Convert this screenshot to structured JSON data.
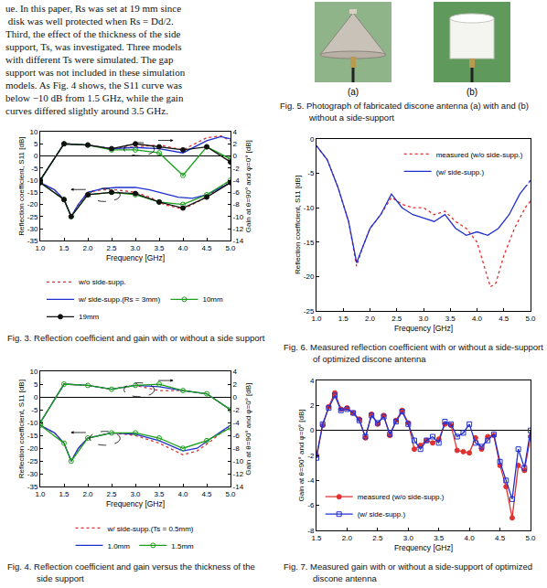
{
  "paragraph": [
    "ue. In this paper, Rs was set at 19 mm since",
    " disk was well protected when Rs = Dd/2.",
    "Third, the effect of the thickness of the side",
    "support, Ts, was investigated. Three models",
    "with different Ts were simulated. The gap",
    "support was not included in these simulation",
    "models. As Fig. 4 shows, the S11 curve was",
    "below −10 dB from 1.5 GHz, while the gain",
    "curves differed slightly around 3.5 GHz."
  ],
  "photo_figure": {
    "labels": [
      "(a)",
      "(b)"
    ],
    "caption": "Fig. 5. Photograph of fabricated discone antenna (a) with and (b) without a side-support"
  },
  "chart_data": [
    {
      "type": "line",
      "caption": "Fig. 3. Reflection coefficient and gain with or without a side support",
      "xlabel": "Frequency [GHz]",
      "ylabel": "Reflection coefficient, S11 [dB]",
      "y2label": "Gain at θ=90° and φ=0° [dB]",
      "xlim": [
        1,
        5
      ],
      "xticks": [
        {
          "value": 1,
          "label": "1.0"
        },
        1.5,
        {
          "value": 2,
          "label": "2.0"
        },
        2.5,
        {
          "value": 3,
          "label": "3.0"
        },
        3.5,
        {
          "value": 4,
          "label": "4.0"
        },
        4.5,
        {
          "value": 5,
          "label": "5.0"
        }
      ],
      "ylim": [
        -35,
        10
      ],
      "yticks": [
        -35,
        -30,
        -25,
        -20,
        -15,
        -10,
        -5,
        0,
        5,
        10
      ],
      "y2lim": [
        -14,
        4
      ],
      "y2ticks": [
        -14,
        -12,
        -10,
        -8,
        -6,
        -4,
        -2,
        0,
        2,
        4
      ],
      "grid": false,
      "legend": "bottom",
      "series": [
        {
          "name": "w/o side-supp.",
          "color": "#e03030",
          "line_style": "dot",
          "marker": "none",
          "axis": "y",
          "x": [
            1.0,
            1.3,
            1.5,
            1.65,
            1.8,
            2.0,
            2.3,
            2.6,
            3.0,
            3.3,
            3.6,
            3.9,
            4.1,
            4.4,
            4.7,
            5.0
          ],
          "values": [
            -11,
            -14,
            -18,
            -25,
            -20,
            -15,
            -14,
            -14,
            -15,
            -17,
            -20,
            -21.5,
            -21,
            -18,
            -14,
            -10
          ]
        },
        {
          "name": "w/ side-supp.(Rs = 3mm)",
          "color": "#2030d0",
          "line_style": "solid",
          "marker": "none",
          "axis": "y",
          "x": [
            1.0,
            1.3,
            1.5,
            1.65,
            1.8,
            2.0,
            2.3,
            2.6,
            3.0,
            3.3,
            3.6,
            3.9,
            4.2,
            4.5,
            4.8,
            5.0
          ],
          "values": [
            -11,
            -14,
            -18,
            -25,
            -20,
            -15,
            -13.5,
            -13,
            -13,
            -14,
            -15.5,
            -17,
            -17.5,
            -16,
            -13,
            -11
          ]
        },
        {
          "name": "10mm",
          "color": "#1aa01a",
          "line_style": "solid",
          "marker": "circle-open",
          "axis": "y",
          "x": [
            1.0,
            1.5,
            1.65,
            2.0,
            2.5,
            3.0,
            3.5,
            4.0,
            4.5,
            5.0
          ],
          "values": [
            -11,
            -18,
            -25,
            -16,
            -15,
            -16,
            -19,
            -20,
            -16,
            -10
          ]
        },
        {
          "name": "19mm",
          "color": "#111111",
          "line_style": "solid",
          "marker": "circle",
          "axis": "y",
          "x": [
            1.0,
            1.5,
            1.65,
            2.0,
            2.5,
            3.0,
            3.5,
            4.0,
            4.5,
            5.0
          ],
          "values": [
            -11,
            -18,
            -25,
            -16,
            -15,
            -15.5,
            -19,
            -21.5,
            -17,
            -11
          ]
        },
        {
          "name": "w/o side-supp.",
          "color": "#e03030",
          "line_style": "dot",
          "marker": "none",
          "axis": "y2",
          "x": [
            1.0,
            1.5,
            2.0,
            2.5,
            3.0,
            3.5,
            4.0,
            4.5,
            4.8,
            5.0
          ],
          "values": [
            -4,
            2,
            1.8,
            1.2,
            1.5,
            1.8,
            1.0,
            3.0,
            3.3,
            2.5
          ]
        },
        {
          "name": "w/ side-supp.(Rs = 3mm)",
          "color": "#2030d0",
          "line_style": "solid",
          "marker": "none",
          "axis": "y2",
          "x": [
            1.0,
            1.5,
            2.0,
            2.5,
            3.0,
            3.5,
            4.0,
            4.5,
            4.8,
            5.0
          ],
          "values": [
            -4,
            2,
            1.8,
            1.2,
            1.4,
            1.2,
            0.5,
            2.5,
            3.2,
            2.8
          ]
        },
        {
          "name": "10mm",
          "color": "#1aa01a",
          "line_style": "solid",
          "marker": "circle-open",
          "axis": "y2",
          "x": [
            1.0,
            1.5,
            2.0,
            2.5,
            3.0,
            3.5,
            4.0,
            4.5,
            5.0
          ],
          "values": [
            -4,
            2,
            1.8,
            1.0,
            1.0,
            0.5,
            -3.2,
            1.5,
            -0.5
          ]
        },
        {
          "name": "19mm",
          "color": "#111111",
          "line_style": "solid",
          "marker": "circle",
          "axis": "y2",
          "x": [
            1.0,
            1.5,
            2.0,
            2.5,
            3.0,
            3.5,
            4.0,
            4.5,
            5.0
          ],
          "values": [
            -4,
            2,
            1.8,
            1.2,
            2.0,
            1.5,
            1.0,
            1.5,
            -1.0
          ]
        }
      ]
    },
    {
      "type": "line",
      "caption": "Fig. 4. Reflection coefficient and gain versus the thickness of the side support",
      "xlabel": "Frequency [GHz]",
      "ylabel": "Reflection coefficient, S11 [dB]",
      "y2label": "Gain at θ=90° and φ=0° [dB]",
      "xlim": [
        1,
        5
      ],
      "xticks": [
        {
          "value": 1,
          "label": "1.0"
        },
        1.5,
        {
          "value": 2,
          "label": "2.0"
        },
        2.5,
        {
          "value": 3,
          "label": "3.0"
        },
        3.5,
        {
          "value": 4,
          "label": "4.0"
        },
        4.5,
        {
          "value": 5,
          "label": "5.0"
        }
      ],
      "ylim": [
        -35,
        10
      ],
      "yticks": [
        -35,
        -30,
        -25,
        -20,
        -15,
        -10,
        -5,
        0,
        5,
        10
      ],
      "y2lim": [
        -14,
        4
      ],
      "y2ticks": [
        -14,
        -12,
        -10,
        -8,
        -6,
        -4,
        -2,
        0,
        2,
        4
      ],
      "grid": false,
      "legend": "bottom",
      "series": [
        {
          "name": "w/ side-supp.(Ts = 0.5mm)",
          "color": "#e03030",
          "line_style": "dot",
          "marker": "none",
          "axis": "y",
          "x": [
            1.0,
            1.3,
            1.5,
            1.65,
            1.8,
            2.0,
            2.5,
            3.0,
            3.5,
            4.0,
            4.3,
            4.6,
            5.0
          ],
          "values": [
            -11,
            -14,
            -18,
            -25,
            -20,
            -16,
            -14,
            -15,
            -18,
            -22.5,
            -21,
            -17,
            -11
          ]
        },
        {
          "name": "1.0mm",
          "color": "#2030d0",
          "line_style": "solid",
          "marker": "none",
          "axis": "y",
          "x": [
            1.0,
            1.3,
            1.5,
            1.65,
            1.8,
            2.0,
            2.5,
            3.0,
            3.5,
            4.0,
            4.3,
            4.6,
            5.0
          ],
          "values": [
            -11,
            -14,
            -18,
            -25,
            -20,
            -16,
            -14,
            -14.5,
            -17,
            -21,
            -20,
            -16,
            -11
          ]
        },
        {
          "name": "1.5mm",
          "color": "#1aa01a",
          "line_style": "solid",
          "marker": "circle-open",
          "axis": "y",
          "x": [
            1.0,
            1.5,
            1.65,
            2.0,
            2.5,
            3.0,
            3.5,
            4.0,
            4.5,
            5.0
          ],
          "values": [
            -11,
            -18,
            -25,
            -16,
            -14,
            -14,
            -16,
            -20,
            -17,
            -12
          ]
        },
        {
          "name": "w/ side-supp.(Ts = 0.5mm)",
          "color": "#e03030",
          "line_style": "dot",
          "marker": "none",
          "axis": "y2",
          "x": [
            1.0,
            1.5,
            2.0,
            2.5,
            3.0,
            3.5,
            4.0,
            4.5,
            5.0
          ],
          "values": [
            -4,
            2,
            1.8,
            1.2,
            1.8,
            1.0,
            1.0,
            0.5,
            -2
          ]
        },
        {
          "name": "1.0mm",
          "color": "#2030d0",
          "line_style": "solid",
          "marker": "none",
          "axis": "y2",
          "x": [
            1.0,
            1.5,
            2.0,
            2.5,
            3.0,
            3.5,
            4.0,
            4.5,
            5.0
          ],
          "values": [
            -4,
            2,
            1.8,
            1.2,
            1.8,
            1.6,
            1.0,
            0.5,
            -2
          ]
        },
        {
          "name": "1.5mm",
          "color": "#1aa01a",
          "line_style": "solid",
          "marker": "circle-open",
          "axis": "y2",
          "x": [
            1.0,
            1.5,
            2.0,
            2.5,
            3.0,
            3.5,
            4.0,
            4.5,
            5.0
          ],
          "values": [
            -4,
            2,
            1.8,
            1.2,
            1.8,
            2.0,
            1.0,
            0.5,
            -2
          ]
        }
      ]
    },
    {
      "type": "line",
      "caption": "Fig. 6. Measured reflection coefficient with or without a side-support of optimized discone antenna",
      "xlabel": "Frequency [GHz]",
      "ylabel": "Reflection coefficient, S11 [dB]",
      "xlim": [
        1,
        5
      ],
      "xticks": [
        {
          "value": 1,
          "label": "1.0"
        },
        1.5,
        {
          "value": 2,
          "label": "2.0"
        },
        2.5,
        {
          "value": 3,
          "label": "3.0"
        },
        3.5,
        {
          "value": 4,
          "label": "4.0"
        },
        4.5,
        {
          "value": 5,
          "label": "5.0"
        }
      ],
      "ylim": [
        -25,
        0
      ],
      "yticks": [
        -25,
        -20,
        -15,
        -10,
        -5,
        0
      ],
      "grid": false,
      "legend": "upper right",
      "series": [
        {
          "name": "measured (w/o side-supp.)",
          "color": "#e03030",
          "line_style": "dot",
          "marker": "none",
          "axis": "y",
          "x": [
            1.0,
            1.2,
            1.4,
            1.6,
            1.75,
            1.85,
            2.0,
            2.2,
            2.4,
            2.6,
            2.8,
            3.0,
            3.2,
            3.4,
            3.6,
            3.8,
            4.0,
            4.15,
            4.25,
            4.35,
            4.5,
            4.7,
            4.9,
            5.0
          ],
          "values": [
            -1,
            -3,
            -7,
            -12,
            -18.5,
            -16,
            -13,
            -11,
            -8.5,
            -9.5,
            -10,
            -10,
            -11,
            -10.5,
            -12,
            -13,
            -15,
            -19,
            -21.5,
            -21,
            -17,
            -13,
            -10,
            -9
          ]
        },
        {
          "name": "(w/ side-supp.)",
          "color": "#2030d0",
          "line_style": "solid",
          "marker": "none",
          "axis": "y",
          "x": [
            1.0,
            1.2,
            1.4,
            1.6,
            1.75,
            1.85,
            2.0,
            2.2,
            2.4,
            2.6,
            2.8,
            3.0,
            3.2,
            3.4,
            3.6,
            3.8,
            4.0,
            4.2,
            4.4,
            4.6,
            4.8,
            5.0
          ],
          "values": [
            -1,
            -3,
            -7,
            -12,
            -18,
            -16,
            -13,
            -11,
            -8,
            -10,
            -11,
            -11.5,
            -12,
            -11,
            -13,
            -14,
            -13.5,
            -14,
            -13,
            -11,
            -8,
            -6
          ]
        }
      ]
    },
    {
      "type": "line",
      "caption": "Fig. 7. Measured gain with or without a side-support of optimized discone antenna",
      "xlabel": "Frequency [GHz]",
      "ylabel": "Gain at θ=90° and φ=0° [dB]",
      "xlim": [
        1.5,
        5
      ],
      "xticks": [
        1.5,
        {
          "value": 2,
          "label": "2.0"
        },
        2.5,
        {
          "value": 3,
          "label": "3.0"
        },
        3.5,
        {
          "value": 4,
          "label": "4.0"
        },
        4.5,
        {
          "value": 5,
          "label": "5.0"
        }
      ],
      "ylim": [
        -8,
        4
      ],
      "yticks": [
        -8,
        -6,
        -4,
        -2,
        0,
        2,
        4
      ],
      "grid": false,
      "legend": "lower left",
      "series": [
        {
          "name": "measured (w/o side-supp.)",
          "color": "#e03030",
          "line_style": "solid",
          "marker": "circle",
          "axis": "y",
          "x": [
            1.5,
            1.6,
            1.7,
            1.8,
            1.9,
            2.0,
            2.1,
            2.2,
            2.3,
            2.4,
            2.5,
            2.6,
            2.7,
            2.8,
            2.9,
            3.0,
            3.1,
            3.2,
            3.3,
            3.4,
            3.5,
            3.6,
            3.7,
            3.8,
            3.9,
            4.0,
            4.1,
            4.2,
            4.3,
            4.4,
            4.5,
            4.6,
            4.7,
            4.8,
            4.9,
            5.0
          ],
          "values": [
            -2.0,
            0.4,
            1.9,
            3.0,
            1.7,
            1.8,
            1.4,
            0.9,
            -0.6,
            1.3,
            0.5,
            1.2,
            -0.4,
            0.8,
            1.6,
            0.6,
            -1.5,
            -1.2,
            -0.8,
            -1.0,
            -0.7,
            0.5,
            0.4,
            -1.6,
            -1.7,
            -1.8,
            -0.6,
            -1.5,
            -0.5,
            -0.4,
            -2.8,
            -4.5,
            -7.0,
            -2.8,
            -3.2,
            -0.5
          ]
        },
        {
          "name": "(w/ side-supp.)",
          "color": "#2030d0",
          "line_style": "solid",
          "marker": "square-open",
          "axis": "y",
          "x": [
            1.5,
            1.6,
            1.7,
            1.8,
            1.9,
            2.0,
            2.1,
            2.2,
            2.3,
            2.4,
            2.5,
            2.6,
            2.7,
            2.8,
            2.9,
            3.0,
            3.1,
            3.2,
            3.3,
            3.4,
            3.5,
            3.6,
            3.7,
            3.8,
            3.9,
            4.0,
            4.1,
            4.2,
            4.3,
            4.4,
            4.5,
            4.6,
            4.7,
            4.8,
            4.9,
            5.0
          ],
          "values": [
            -2.2,
            0.5,
            1.8,
            2.8,
            1.6,
            1.7,
            1.4,
            0.8,
            -0.5,
            1.2,
            0.6,
            1.1,
            -0.3,
            0.7,
            1.5,
            0.5,
            -0.8,
            -1.5,
            -0.8,
            -0.5,
            -1.0,
            0.7,
            0.5,
            -0.5,
            -0.2,
            0.5,
            -1.0,
            -1.3,
            -0.8,
            -0.3,
            -2.5,
            -4.0,
            -5.5,
            -1.5,
            -3.0,
            0
          ]
        }
      ]
    }
  ]
}
